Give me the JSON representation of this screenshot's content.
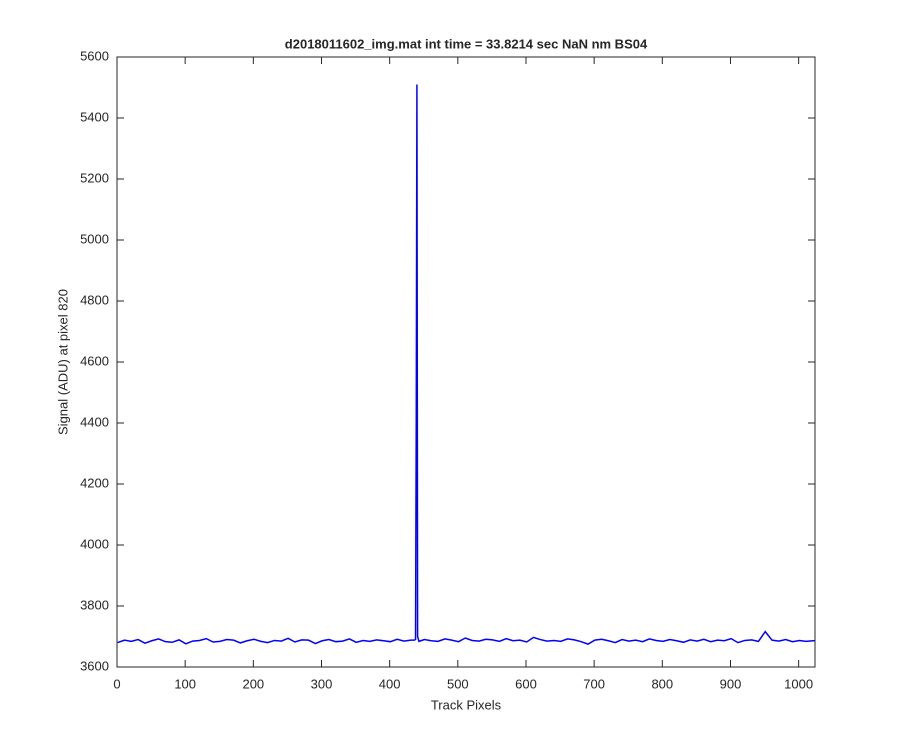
{
  "chart_data": {
    "type": "line",
    "title": "d2018011602_img.mat int time = 33.8214 sec  NaN nm BS04",
    "xlabel": "Track Pixels",
    "ylabel": "Signal (ADU) at pixel 820",
    "color": "#0000ff",
    "x": [
      1,
      11,
      21,
      31,
      41,
      51,
      61,
      71,
      81,
      91,
      101,
      111,
      121,
      131,
      141,
      151,
      161,
      171,
      181,
      191,
      201,
      211,
      221,
      231,
      241,
      251,
      261,
      271,
      281,
      291,
      301,
      311,
      321,
      331,
      341,
      351,
      361,
      371,
      381,
      391,
      401,
      411,
      421,
      431,
      436,
      438,
      439,
      440,
      441,
      443,
      451,
      461,
      471,
      481,
      491,
      501,
      511,
      521,
      531,
      541,
      551,
      561,
      571,
      581,
      591,
      601,
      611,
      621,
      631,
      641,
      651,
      661,
      671,
      681,
      691,
      701,
      711,
      721,
      731,
      741,
      751,
      761,
      771,
      781,
      791,
      801,
      811,
      821,
      831,
      841,
      851,
      861,
      871,
      881,
      891,
      901,
      911,
      921,
      931,
      941,
      951,
      961,
      971,
      981,
      991,
      1001,
      1011,
      1021,
      1024
    ],
    "values": [
      3680,
      3688,
      3684,
      3690,
      3678,
      3686,
      3692,
      3683,
      3681,
      3689,
      3676,
      3685,
      3687,
      3693,
      3682,
      3684,
      3690,
      3688,
      3679,
      3686,
      3691,
      3684,
      3680,
      3687,
      3685,
      3694,
      3682,
      3689,
      3688,
      3677,
      3686,
      3690,
      3683,
      3685,
      3692,
      3681,
      3687,
      3684,
      3689,
      3686,
      3683,
      3691,
      3685,
      3688,
      3688,
      3690,
      4400,
      5510,
      3700,
      3684,
      3690,
      3686,
      3684,
      3692,
      3688,
      3683,
      3695,
      3687,
      3685,
      3691,
      3689,
      3684,
      3693,
      3686,
      3688,
      3682,
      3697,
      3690,
      3685,
      3687,
      3684,
      3692,
      3689,
      3683,
      3675,
      3688,
      3691,
      3686,
      3680,
      3690,
      3685,
      3688,
      3683,
      3692,
      3687,
      3684,
      3690,
      3686,
      3681,
      3689,
      3685,
      3691,
      3683,
      3688,
      3686,
      3693,
      3680,
      3687,
      3689,
      3684,
      3716,
      3688,
      3685,
      3690,
      3683,
      3687,
      3684,
      3686,
      3686
    ],
    "xlim": [
      0,
      1024
    ],
    "xticks": [
      0,
      100,
      200,
      300,
      400,
      500,
      600,
      700,
      800,
      900,
      1000
    ],
    "ylim": [
      3600,
      5600
    ],
    "yticks": [
      3600,
      3800,
      4000,
      4200,
      4400,
      4600,
      4800,
      5000,
      5200,
      5400,
      5600
    ],
    "grid": false
  }
}
